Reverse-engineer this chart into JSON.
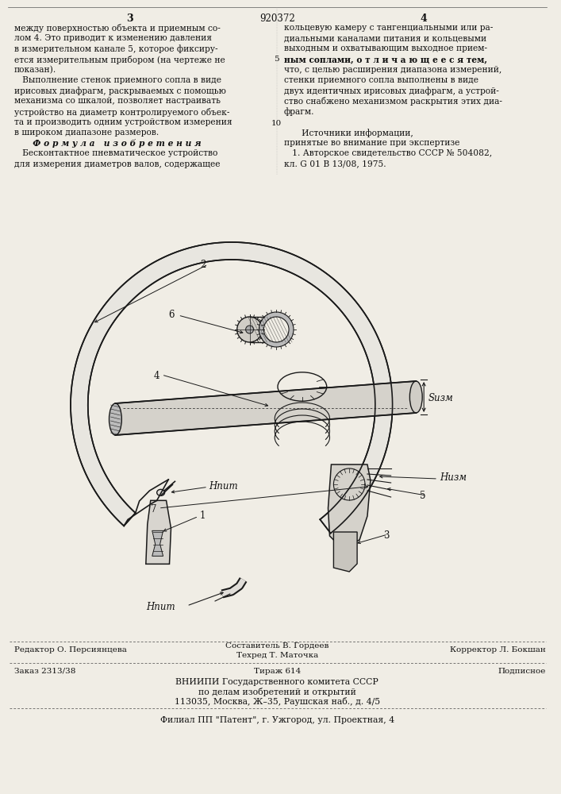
{
  "bg_color": "#f0ede5",
  "title_patent": "920372",
  "col_left_page_num": "3",
  "col_right_page_num": "4",
  "text_col_left": [
    "между поверхностью объекта и приемным со-",
    "лом 4. Это приводит к изменению давления",
    "в измерительном канале 5, которое фиксиру-",
    "ется измерительным прибором (на чертеже не",
    "показан).",
    "   Выполнение стенок приемного сопла в виде",
    "ирисовых диафрагм, раскрываемых с помощью",
    "механизма со шкалой, позволяет настраивать",
    "устройство на диаметр контролируемого объек-",
    "та и производить одним устройством измерения",
    "в широком диапазоне размеров."
  ],
  "formula_title": "   Ф о р м у л а   и з о б р е т е н и я",
  "formula_text": [
    "   Бесконтактное пневматическое устройство",
    "для измерения диаметров валов, содержащее"
  ],
  "text_col_right": [
    "кольцевую камеру с тангенциальными или ра-",
    "диальными каналами питания и кольцевыми",
    "выходным и охватывающим выходное прием-",
    "ным соплами, о т л и ч а ю щ е е с я тем,",
    "что, с целью расширения диапазона измерений,",
    "стенки приемного сопла выполнены в виде",
    "двух идентичных ирисовых диафрагм, а устрой-",
    "ство снабжено механизмом раскрытия этих диа-",
    "фрагм."
  ],
  "sources_title": "   Источники информации,",
  "sources_text": [
    "принятые во внимание при экспертизе",
    "   1. Авторское свидетельство СССР № 504082,",
    "кл. G 01 B 13/08, 1975."
  ],
  "line_number_10": "10",
  "line_number_5": "5",
  "footer_line1_left": "Редактор О. Персиянцева",
  "footer_line1_center": "Составитель В. Гордеев",
  "footer_line1_right": "Корректор Л. Бокшан",
  "footer_line2_center": "Техред Т. Маточка",
  "footer_line3_left": "Заказ 2313/38",
  "footer_line3_center": "Тираж 614",
  "footer_line3_right": "Подписное",
  "footer_line4": "ВНИИПИ Государственного комитета СССР",
  "footer_line5": "по делам изобретений и открытий",
  "footer_line6": "113035, Москва, Ж–35, Раушская наб., д. 4/5",
  "footer_line7": "Филиал ПП \"Патент\", г. Ужгород, ул. Проектная, 4",
  "lbl_H_pit_top": "Нпит",
  "lbl_H_pit_bot": "Нпит",
  "lbl_S_izm": "Sизм",
  "lbl_H_izm": "Низм",
  "lbl_1": "1",
  "lbl_2": "2",
  "lbl_3": "3",
  "lbl_4": "4",
  "lbl_5": "5",
  "lbl_6": "6",
  "lbl_7": "7"
}
